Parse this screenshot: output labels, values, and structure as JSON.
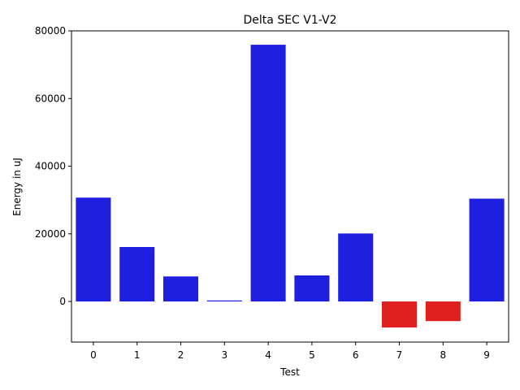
{
  "chart_data": {
    "type": "bar",
    "title": "Delta SEC V1-V2",
    "xlabel": "Test",
    "ylabel": "Energy in uJ",
    "categories": [
      "0",
      "1",
      "2",
      "3",
      "4",
      "5",
      "6",
      "7",
      "8",
      "9"
    ],
    "values": [
      30700,
      16100,
      7400,
      300,
      75900,
      7700,
      20100,
      -7700,
      -5800,
      30400
    ],
    "ylim": [
      -12000,
      80000
    ],
    "yticks": [
      0,
      20000,
      40000,
      60000,
      80000
    ],
    "ytick_labels": [
      "0",
      "20000",
      "40000",
      "60000",
      "80000"
    ],
    "colors": {
      "positive": "#1f1fe0",
      "negative": "#e01f1f"
    },
    "grid": false,
    "legend": "none"
  }
}
